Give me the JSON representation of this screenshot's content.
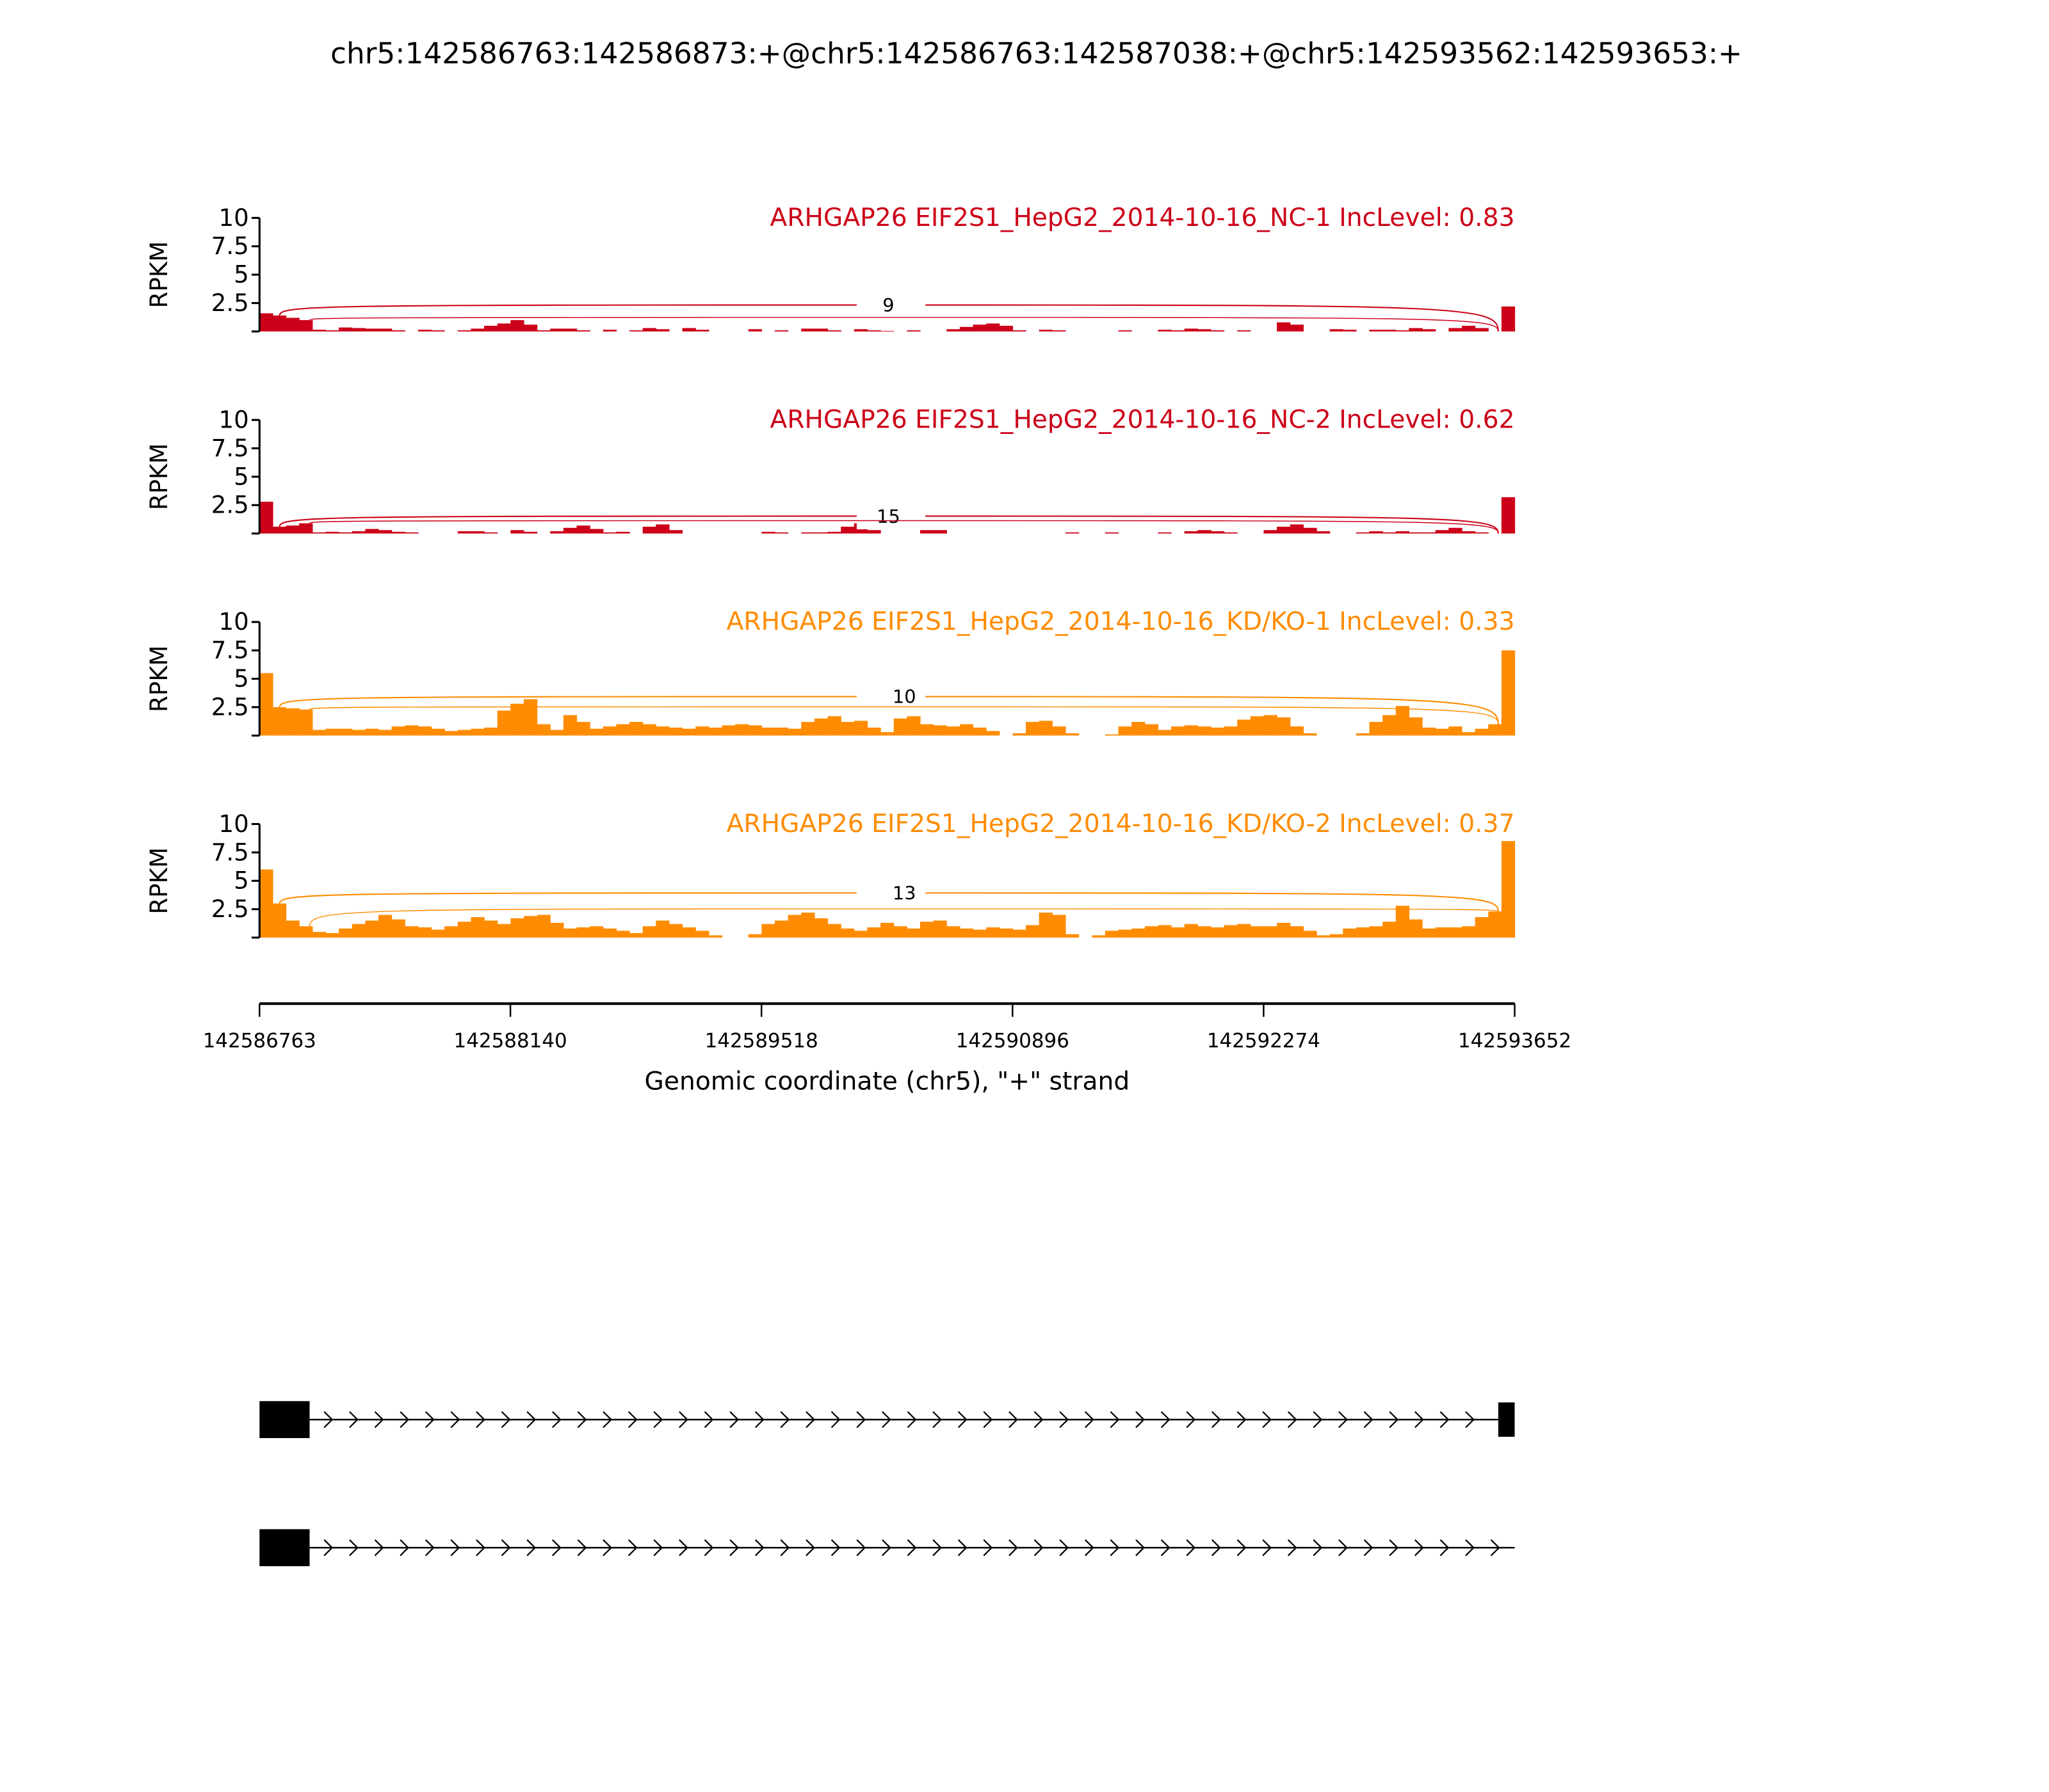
{
  "chart_data": {
    "type": "area",
    "subtype": "sashimi",
    "title": "chr5:142586763:142586873:+@chr5:142586763:142587038:+@chr5:142593562:142593653:+",
    "xlabel": "Genomic coordinate (chr5), \"+\" strand",
    "ylabel": "RPKM",
    "xlim": [
      142586763,
      142593652
    ],
    "xticks": [
      "142586763",
      "142588140",
      "142589518",
      "142590896",
      "142592274",
      "142593652"
    ],
    "ylim": [
      0,
      10
    ],
    "yticks": [
      "2.5",
      "5",
      "7.5",
      "10"
    ],
    "grid": false,
    "colors": {
      "NC": "#cc0018",
      "KD": "#ff8c00",
      "gene": "#000000"
    },
    "tracks": [
      {
        "label": "ARHGAP26 EIF2S1_HepG2_2014-10-16_NC-1 IncLevel: 0.83",
        "color": "#cc0018",
        "coverage": [
          1.6,
          1.4,
          1.2,
          1.0,
          0.15,
          0.1,
          0.35,
          0.3,
          0.25,
          0.25,
          0.1,
          0,
          0.15,
          0.1,
          0,
          0.1,
          0.25,
          0.5,
          0.7,
          1.0,
          0.6,
          0.1,
          0.25,
          0.25,
          0.1,
          0,
          0.15,
          0,
          0.1,
          0.3,
          0.2,
          0,
          0.3,
          0.15,
          0,
          0,
          0,
          0.2,
          0,
          0.1,
          0,
          0.25,
          0.25,
          0.1,
          0,
          0.2,
          0.1,
          0.05,
          0,
          0.1,
          0,
          0,
          0.2,
          0.4,
          0.6,
          0.7,
          0.5,
          0.1,
          0,
          0.15,
          0.1,
          0,
          0,
          0,
          0,
          0.1,
          0,
          0,
          0.15,
          0.1,
          0.25,
          0.2,
          0.1,
          0,
          0.1,
          0,
          0,
          0.8,
          0.6,
          0,
          0,
          0.2,
          0.15,
          0,
          0.15,
          0.15,
          0.1,
          0.3,
          0.2,
          0,
          0.3,
          0.5,
          0.3,
          0,
          2.2
        ],
        "junctions": [
          {
            "start": 142586873,
            "end": 142593562,
            "count": "9"
          },
          {
            "start": 142587038,
            "end": 142593562,
            "count": ""
          }
        ]
      },
      {
        "label": "ARHGAP26 EIF2S1_HepG2_2014-10-16_NC-2 IncLevel: 0.62",
        "color": "#cc0018",
        "coverage": [
          2.8,
          0.6,
          0.7,
          0.9,
          0.1,
          0.15,
          0.1,
          0.2,
          0.4,
          0.3,
          0.15,
          0.1,
          0,
          0,
          0,
          0.2,
          0.2,
          0.1,
          0,
          0.3,
          0.15,
          0,
          0.2,
          0.5,
          0.7,
          0.4,
          0.1,
          0.15,
          0,
          0.6,
          0.8,
          0.3,
          0,
          0,
          0,
          0,
          0,
          0,
          0.15,
          0.1,
          0,
          0.1,
          0.1,
          0.15,
          0.6,
          0.9,
          0.3,
          0,
          0,
          0,
          0.3,
          0.3,
          0,
          0,
          0,
          0,
          0,
          0,
          0,
          0,
          0,
          0.1,
          0,
          0,
          0.1,
          0,
          0,
          0,
          0.1,
          0,
          0.2,
          0.3,
          0.2,
          0.1,
          0,
          0,
          0.3,
          0.6,
          0.8,
          0.5,
          0.2,
          0,
          0,
          0.1,
          0.2,
          0.1,
          0.2,
          0.1,
          0.1,
          0.3,
          0.5,
          0.2,
          0.1,
          0,
          3.2
        ],
        "junctions": [
          {
            "start": 142586873,
            "end": 142593562,
            "count": "15"
          },
          {
            "start": 142587038,
            "end": 142593562,
            "count": ""
          }
        ]
      },
      {
        "label": "ARHGAP26 EIF2S1_HepG2_2014-10-16_KD/KO-1 IncLevel: 0.33",
        "color": "#ff8c00",
        "coverage": [
          5.5,
          2.5,
          2.4,
          2.3,
          0.5,
          0.6,
          0.6,
          0.5,
          0.6,
          0.5,
          0.8,
          0.9,
          0.8,
          0.6,
          0.4,
          0.5,
          0.6,
          0.7,
          2.2,
          2.8,
          3.2,
          1.0,
          0.5,
          1.8,
          1.2,
          0.6,
          0.8,
          1.0,
          1.2,
          1.0,
          0.8,
          0.7,
          0.6,
          0.8,
          0.7,
          0.9,
          1.0,
          0.9,
          0.7,
          0.7,
          0.6,
          1.2,
          1.5,
          1.7,
          1.2,
          1.3,
          0.7,
          0.3,
          1.5,
          1.7,
          1.0,
          0.9,
          0.8,
          1.0,
          0.7,
          0.4,
          0,
          0.2,
          1.2,
          1.3,
          0.8,
          0.2,
          0,
          0,
          0.1,
          0.8,
          1.2,
          1.0,
          0.5,
          0.8,
          0.9,
          0.8,
          0.7,
          0.8,
          1.4,
          1.7,
          1.8,
          1.6,
          0.8,
          0.2,
          0,
          0,
          0,
          0.2,
          1.2,
          1.8,
          2.6,
          1.6,
          0.7,
          0.6,
          0.8,
          0.3,
          0.6,
          1.0,
          7.5
        ],
        "junctions": [
          {
            "start": 142586873,
            "end": 142593562,
            "count": "10"
          },
          {
            "start": 142587038,
            "end": 142593562,
            "count": ""
          }
        ]
      },
      {
        "label": "ARHGAP26 EIF2S1_HepG2_2014-10-16_KD/KO-2 IncLevel: 0.37",
        "color": "#ff8c00",
        "coverage": [
          6.0,
          3.0,
          1.5,
          1.0,
          0.5,
          0.4,
          0.8,
          1.2,
          1.5,
          2.0,
          1.6,
          1.0,
          0.9,
          0.7,
          1.0,
          1.4,
          1.8,
          1.5,
          1.2,
          1.7,
          1.9,
          2.0,
          1.3,
          0.8,
          0.9,
          1.0,
          0.8,
          0.6,
          0.4,
          1.0,
          1.5,
          1.2,
          0.9,
          0.6,
          0.2,
          0,
          0,
          0.3,
          1.2,
          1.5,
          2.0,
          2.2,
          1.7,
          1.2,
          0.8,
          0.6,
          0.9,
          1.3,
          1.0,
          0.8,
          1.4,
          1.5,
          1.0,
          0.8,
          0.7,
          0.9,
          0.8,
          0.7,
          1.1,
          2.2,
          2.0,
          0.3,
          0,
          0.2,
          0.6,
          0.7,
          0.8,
          1.0,
          1.1,
          0.9,
          1.2,
          1.0,
          0.9,
          1.1,
          1.2,
          1.0,
          1.0,
          1.3,
          1.0,
          0.6,
          0.2,
          0.3,
          0.8,
          0.9,
          1.0,
          1.4,
          2.8,
          1.6,
          0.8,
          0.9,
          0.9,
          1.0,
          1.8,
          2.3,
          8.5
        ],
        "junctions": [
          {
            "start": 142586873,
            "end": 142593562,
            "count": "13"
          },
          {
            "start": 142587038,
            "end": 142593562,
            "count": ""
          }
        ]
      }
    ],
    "transcripts": [
      {
        "exons": [
          [
            142586763,
            142587038
          ],
          [
            142593562,
            142593653
          ]
        ]
      },
      {
        "exons": [
          [
            142586763,
            142587038
          ]
        ],
        "end": 142593652
      }
    ]
  }
}
